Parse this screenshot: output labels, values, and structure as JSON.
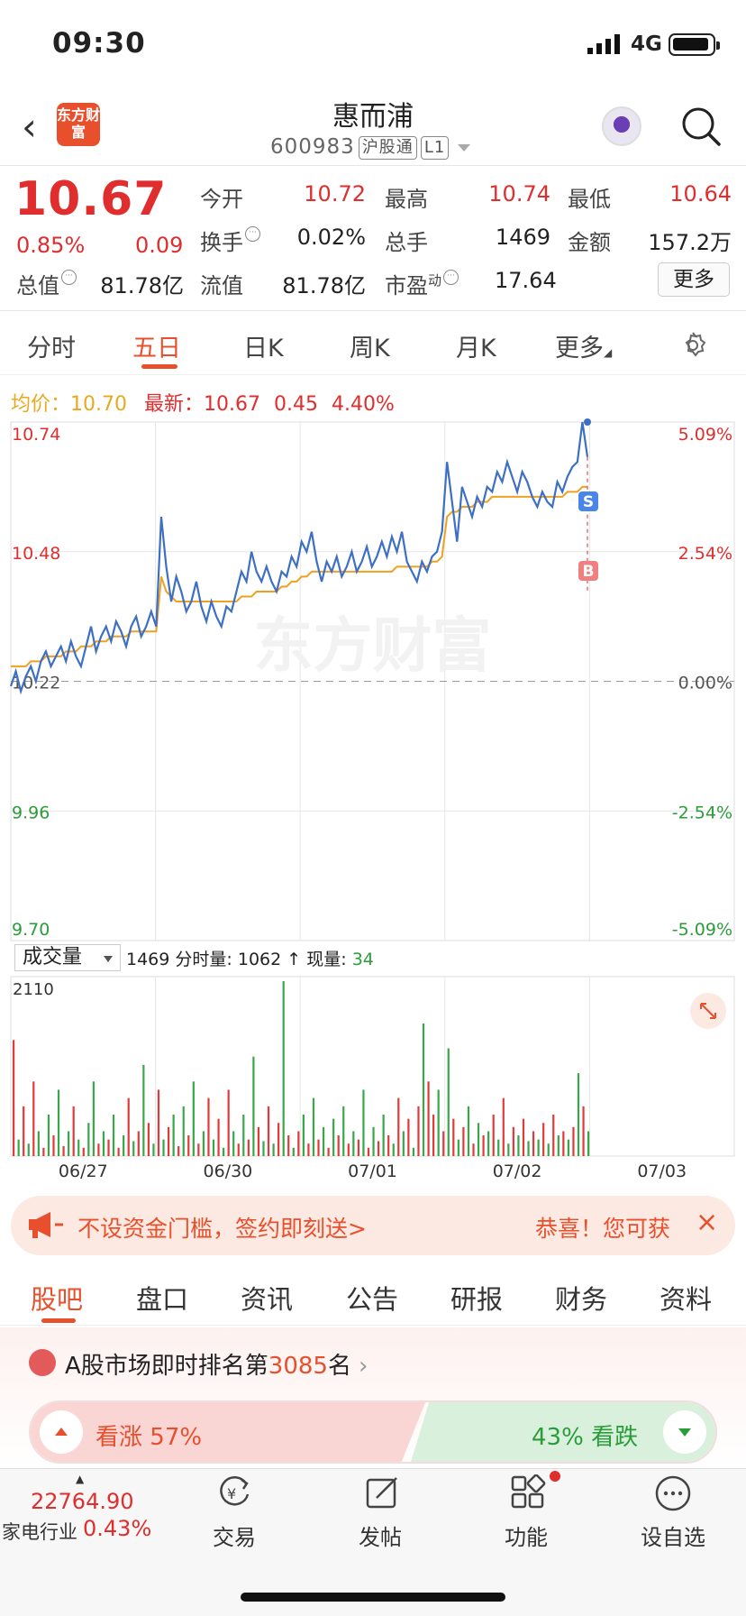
{
  "status_bar": {
    "time": "09:30",
    "network": "4G"
  },
  "header": {
    "back": "<",
    "logo": "东方财富",
    "title": "惠而浦",
    "code": "600983",
    "tag1": "沪股通",
    "tag2": "L1"
  },
  "quote": {
    "price": "10.67",
    "pct": "0.85%",
    "change": "0.09",
    "open_label": "今开",
    "open": "10.72",
    "high_label": "最高",
    "high": "10.74",
    "low_label": "最低",
    "low": "10.64",
    "turnover_label": "换手",
    "turnover": "0.02%",
    "volume_label": "总手",
    "volume": "1469",
    "amount_label": "金额",
    "amount": "157.2万",
    "mcap_label": "总值",
    "mcap": "81.78亿",
    "float_label": "流值",
    "float": "81.78亿",
    "pe_label": "市盈",
    "pe_sup": "动",
    "pe": "17.64",
    "more": "更多"
  },
  "tabs": [
    "分时",
    "五日",
    "日K",
    "周K",
    "月K",
    "更多"
  ],
  "active_tab": "五日",
  "info": {
    "avg_label": "均价：",
    "avg": "10.70",
    "last_label": "最新：",
    "last": "10.67",
    "chg": "0.45",
    "pct": "4.40%"
  },
  "chart_data": {
    "type": "line",
    "y_labels_left": [
      "10.74",
      "10.48",
      "10.22",
      "9.96",
      "9.70"
    ],
    "y_labels_right": [
      "5.09%",
      "2.54%",
      "0.00%",
      "-2.54%",
      "-5.09%"
    ],
    "ylim": [
      9.7,
      10.74
    ],
    "base": 10.22,
    "x_labels": [
      "06/27",
      "06/30",
      "07/01",
      "07/02",
      "07/03"
    ],
    "watermark": "东方财富",
    "marker_s": "S",
    "marker_b": "B",
    "price_series": [
      10.21,
      10.24,
      10.2,
      10.23,
      10.25,
      10.22,
      10.26,
      10.28,
      10.25,
      10.27,
      10.29,
      10.26,
      10.3,
      10.27,
      10.25,
      10.29,
      10.33,
      10.28,
      10.31,
      10.33,
      10.3,
      10.34,
      10.32,
      10.29,
      10.33,
      10.35,
      10.31,
      10.33,
      10.36,
      10.33,
      10.55,
      10.45,
      10.38,
      10.43,
      10.4,
      10.36,
      10.38,
      10.42,
      10.37,
      10.34,
      10.38,
      10.35,
      10.33,
      10.37,
      10.36,
      10.4,
      10.44,
      10.42,
      10.48,
      10.44,
      10.42,
      10.45,
      10.42,
      10.4,
      10.44,
      10.43,
      10.47,
      10.45,
      10.5,
      10.48,
      10.52,
      10.46,
      10.42,
      10.46,
      10.44,
      10.47,
      10.43,
      10.45,
      10.48,
      10.44,
      10.46,
      10.49,
      10.45,
      10.47,
      10.5,
      10.47,
      10.51,
      10.48,
      10.52,
      10.46,
      10.44,
      10.42,
      10.46,
      10.44,
      10.47,
      10.48,
      10.52,
      10.66,
      10.58,
      10.5,
      10.61,
      10.58,
      10.55,
      10.59,
      10.57,
      10.61,
      10.6,
      10.64,
      10.62,
      10.66,
      10.63,
      10.6,
      10.64,
      10.62,
      10.59,
      10.57,
      10.6,
      10.58,
      10.57,
      10.62,
      10.6,
      10.63,
      10.65,
      10.66,
      10.74,
      10.67
    ],
    "avg_series": [
      10.25,
      10.25,
      10.25,
      10.25,
      10.26,
      10.26,
      10.26,
      10.27,
      10.27,
      10.27,
      10.27,
      10.28,
      10.28,
      10.28,
      10.29,
      10.29,
      10.29,
      10.3,
      10.3,
      10.3,
      10.31,
      10.31,
      10.31,
      10.31,
      10.32,
      10.32,
      10.32,
      10.32,
      10.32,
      10.32,
      10.43,
      10.4,
      10.39,
      10.38,
      10.38,
      10.38,
      10.38,
      10.38,
      10.38,
      10.38,
      10.38,
      10.38,
      10.38,
      10.38,
      10.38,
      10.38,
      10.39,
      10.39,
      10.39,
      10.4,
      10.4,
      10.4,
      10.4,
      10.4,
      10.41,
      10.41,
      10.42,
      10.42,
      10.43,
      10.43,
      10.44,
      10.44,
      10.44,
      10.44,
      10.44,
      10.44,
      10.44,
      10.44,
      10.44,
      10.44,
      10.44,
      10.44,
      10.44,
      10.44,
      10.44,
      10.44,
      10.44,
      10.45,
      10.45,
      10.45,
      10.45,
      10.45,
      10.45,
      10.45,
      10.46,
      10.46,
      10.47,
      10.55,
      10.56,
      10.56,
      10.57,
      10.57,
      10.57,
      10.58,
      10.58,
      10.58,
      10.59,
      10.59,
      10.59,
      10.59,
      10.59,
      10.59,
      10.59,
      10.59,
      10.59,
      10.59,
      10.59,
      10.59,
      10.59,
      10.59,
      10.59,
      10.6,
      10.6,
      10.6,
      10.61,
      10.61
    ],
    "volume_max": 2110,
    "volumes": [
      1400,
      200,
      600,
      150,
      900,
      300,
      100,
      500,
      250,
      800,
      120,
      300,
      600,
      200,
      100,
      400,
      900,
      150,
      300,
      200,
      500,
      100,
      250,
      700,
      180,
      300,
      1100,
      400,
      150,
      800,
      200,
      350,
      500,
      120,
      600,
      250,
      900,
      150,
      300,
      700,
      200,
      450,
      100,
      800,
      300,
      150,
      500,
      200,
      1200,
      350,
      180,
      600,
      150,
      400,
      2110,
      250,
      100,
      300,
      500,
      150,
      700,
      200,
      350,
      100,
      450,
      250,
      600,
      150,
      300,
      200,
      800,
      100,
      350,
      180,
      500,
      250,
      150,
      700,
      300,
      450,
      100,
      600,
      1600,
      900,
      500,
      800,
      300,
      1300,
      450,
      200,
      350,
      600,
      150,
      400,
      250,
      300,
      500,
      200,
      700,
      150,
      350,
      250,
      450,
      180,
      300,
      200,
      400,
      150,
      500,
      250,
      300,
      200,
      350,
      1000,
      600,
      300
    ],
    "volume_colors": [
      "r",
      "g",
      "r",
      "g",
      "r",
      "g",
      "r",
      "g",
      "r",
      "g",
      "r",
      "g",
      "r",
      "g",
      "r",
      "g",
      "g",
      "r",
      "g",
      "r",
      "g",
      "r",
      "g",
      "r",
      "g",
      "r",
      "g",
      "r",
      "g",
      "r",
      "g",
      "r",
      "g",
      "r",
      "g",
      "r",
      "g",
      "r",
      "g",
      "r",
      "g",
      "r",
      "g",
      "r",
      "g",
      "r",
      "g",
      "r",
      "g",
      "r",
      "g",
      "r",
      "g",
      "r",
      "g",
      "r",
      "g",
      "r",
      "g",
      "r",
      "g",
      "r",
      "g",
      "r",
      "g",
      "r",
      "g",
      "r",
      "g",
      "r",
      "g",
      "r",
      "g",
      "r",
      "g",
      "r",
      "g",
      "r",
      "g",
      "r",
      "g",
      "r",
      "g",
      "r",
      "r",
      "g",
      "r",
      "g",
      "r",
      "g",
      "r",
      "g",
      "r",
      "g",
      "r",
      "g",
      "r",
      "g",
      "r",
      "g",
      "r",
      "g",
      "r",
      "g",
      "r",
      "g",
      "r",
      "g",
      "r",
      "g",
      "r",
      "g",
      "r",
      "g",
      "r",
      "g",
      "g"
    ]
  },
  "volume_bar": {
    "selector": "成交量",
    "total": "1469",
    "fen_label": "分时量:",
    "fen": "1062",
    "arrow": "↑",
    "now_label": "现量:",
    "now": "34",
    "max": "2110"
  },
  "banner": {
    "text": "不设资金门槛，签约即刻送>",
    "right": "恭喜！您可获"
  },
  "sub_tabs": [
    "股吧",
    "盘口",
    "资讯",
    "公告",
    "研报",
    "财务",
    "资料"
  ],
  "ranking": {
    "prefix": "A股市场即时排名第",
    "rank": "3085",
    "suffix": "名"
  },
  "sentiment": {
    "up_label": "看涨",
    "up_pct": "57%",
    "down_pct": "43%",
    "down_label": "看跌",
    "up_fraction": 0.57
  },
  "bottom_nav": {
    "index_value": "22764.90",
    "index_name": "家电行业",
    "index_pct": "0.43%",
    "items": [
      "交易",
      "发帖",
      "功能",
      "设自选"
    ]
  }
}
